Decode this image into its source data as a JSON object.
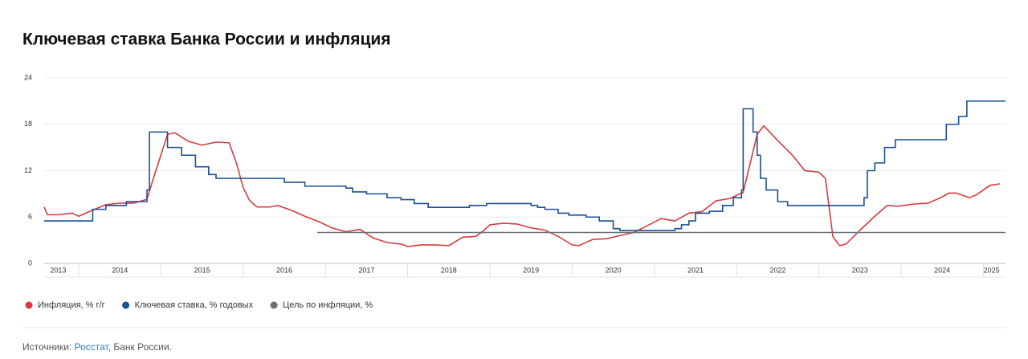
{
  "chart_data": {
    "type": "line",
    "title": "Ключевая ставка Банка России и инфляция",
    "xlim": [
      2013.58,
      2025.27
    ],
    "xticks": [
      {
        "value": 2013.75,
        "label": "2013"
      },
      {
        "value": 2014.5,
        "label": "2014"
      },
      {
        "value": 2015.5,
        "label": "2015"
      },
      {
        "value": 2016.5,
        "label": "2016"
      },
      {
        "value": 2017.5,
        "label": "2017"
      },
      {
        "value": 2018.5,
        "label": "2018"
      },
      {
        "value": 2019.5,
        "label": "2019"
      },
      {
        "value": 2020.5,
        "label": "2020"
      },
      {
        "value": 2021.5,
        "label": "2021"
      },
      {
        "value": 2022.5,
        "label": "2022"
      },
      {
        "value": 2023.5,
        "label": "2023"
      },
      {
        "value": 2024.5,
        "label": "2024"
      },
      {
        "value": 2025.1,
        "label": "2025"
      }
    ],
    "ylim": [
      0,
      24
    ],
    "yticks": [
      0,
      6,
      12,
      18,
      24
    ],
    "grid": true,
    "legend": "bottom-left",
    "series": [
      {
        "name": "Инфляция, % г/г",
        "color": "#d63b3f",
        "drawstyle": "linear",
        "x": [
          2013.58,
          2013.62,
          2013.75,
          2013.92,
          2014.0,
          2014.17,
          2014.33,
          2014.5,
          2014.67,
          2014.83,
          2014.92,
          2015.08,
          2015.17,
          2015.33,
          2015.5,
          2015.67,
          2015.83,
          2015.92,
          2016.0,
          2016.08,
          2016.17,
          2016.33,
          2016.42,
          2016.58,
          2016.75,
          2016.92,
          2017.08,
          2017.25,
          2017.42,
          2017.58,
          2017.75,
          2017.92,
          2018.0,
          2018.17,
          2018.33,
          2018.5,
          2018.67,
          2018.83,
          2018.92,
          2019.0,
          2019.17,
          2019.33,
          2019.5,
          2019.67,
          2019.83,
          2020.0,
          2020.08,
          2020.25,
          2020.42,
          2020.58,
          2020.75,
          2020.92,
          2021.08,
          2021.25,
          2021.42,
          2021.58,
          2021.75,
          2021.92,
          2022.08,
          2022.25,
          2022.33,
          2022.5,
          2022.67,
          2022.83,
          2022.92,
          2023.0,
          2023.08,
          2023.17,
          2023.25,
          2023.33,
          2023.5,
          2023.67,
          2023.83,
          2023.96,
          2024.17,
          2024.33,
          2024.5,
          2024.58,
          2024.67,
          2024.83,
          2024.92,
          2025.0,
          2025.08,
          2025.2
        ],
        "values": [
          7.3,
          6.3,
          6.3,
          6.5,
          6.1,
          6.9,
          7.6,
          7.8,
          7.8,
          8.3,
          11.4,
          16.7,
          16.9,
          15.8,
          15.3,
          15.7,
          15.6,
          12.9,
          9.8,
          8.1,
          7.3,
          7.3,
          7.5,
          6.9,
          6.1,
          5.4,
          4.6,
          4.1,
          4.4,
          3.3,
          2.7,
          2.5,
          2.2,
          2.4,
          2.4,
          2.3,
          3.4,
          3.5,
          4.2,
          5.0,
          5.2,
          5.1,
          4.6,
          4.3,
          3.5,
          2.4,
          2.3,
          3.1,
          3.2,
          3.6,
          4.0,
          4.9,
          5.8,
          5.5,
          6.5,
          6.7,
          8.1,
          8.4,
          9.2,
          16.7,
          17.8,
          15.9,
          14.1,
          12.0,
          11.9,
          11.8,
          11.0,
          3.5,
          2.3,
          2.5,
          4.3,
          6.0,
          7.5,
          7.4,
          7.7,
          7.8,
          8.6,
          9.1,
          9.1,
          8.5,
          8.9,
          9.5,
          10.1,
          10.3
        ]
      },
      {
        "name": "Ключевая ставка, % годовых",
        "color": "#1b4f93",
        "drawstyle": "steps-post",
        "x": [
          2013.58,
          2014.17,
          2014.33,
          2014.58,
          2014.83,
          2014.86,
          2015.08,
          2015.25,
          2015.42,
          2015.58,
          2015.67,
          2016.5,
          2016.75,
          2017.25,
          2017.33,
          2017.5,
          2017.75,
          2017.92,
          2018.08,
          2018.25,
          2018.75,
          2018.96,
          2019.5,
          2019.58,
          2019.67,
          2019.83,
          2019.96,
          2020.17,
          2020.33,
          2020.5,
          2020.58,
          2021.25,
          2021.33,
          2021.42,
          2021.5,
          2021.67,
          2021.83,
          2021.96,
          2022.06,
          2022.08,
          2022.2,
          2022.25,
          2022.29,
          2022.36,
          2022.5,
          2022.62,
          2023.55,
          2023.59,
          2023.68,
          2023.8,
          2023.93,
          2024.55,
          2024.7,
          2024.8,
          2025.27
        ],
        "values": [
          5.5,
          7,
          7.5,
          8,
          9.5,
          17,
          15,
          14,
          12.5,
          11.5,
          11,
          10.5,
          10,
          9.75,
          9.25,
          9,
          8.5,
          8.25,
          7.75,
          7.25,
          7.5,
          7.75,
          7.5,
          7.25,
          7,
          6.5,
          6.25,
          6,
          5.5,
          4.5,
          4.25,
          4.5,
          5,
          5.5,
          6.5,
          6.75,
          7.5,
          8.5,
          9.5,
          20,
          17,
          14,
          11,
          9.5,
          8,
          7.5,
          8.5,
          12,
          13,
          15,
          16,
          18,
          19,
          21,
          21
        ]
      },
      {
        "name": "Цель по инфляции, %",
        "color": "#6b7078",
        "drawstyle": "linear",
        "x": [
          2016.9,
          2025.27
        ],
        "values": [
          4,
          4
        ]
      }
    ]
  },
  "footer": {
    "label": "Источники:",
    "link": "Росстат",
    "rest": ", Банк России."
  }
}
